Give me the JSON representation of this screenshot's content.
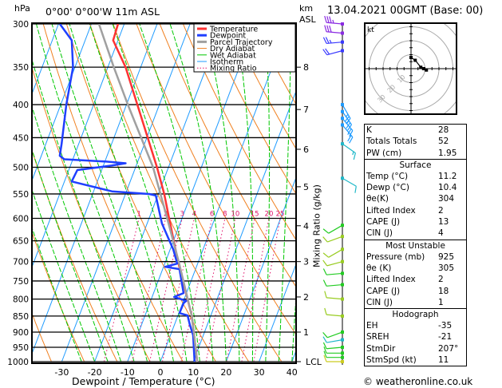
{
  "header": {
    "pressure_unit": "hPa",
    "location": "0°00' 0°00'W  11m  ASL",
    "height_unit_line1": "km",
    "height_unit_line2": "ASL",
    "datetime": "13.04.2021  00GMT  (Base: 00)"
  },
  "footer": {
    "credit": "© weatheronline.co.uk"
  },
  "chart_data": {
    "type": "skew-t log-p",
    "xlabel": "Dewpoint / Temperature (°C)",
    "ylabel_right": "Mixing Ratio (g/kg)",
    "x_ticks": [
      -30,
      -20,
      -10,
      0,
      10,
      20,
      30,
      40
    ],
    "xlim": [
      -39,
      41
    ],
    "pressure_levels": [
      300,
      350,
      400,
      450,
      500,
      550,
      600,
      650,
      700,
      750,
      800,
      850,
      900,
      950,
      1000
    ],
    "ylim_hpa": [
      1000,
      300
    ],
    "y_scale": "log",
    "height_ticks_km": [
      {
        "label": "8",
        "p": 350
      },
      {
        "label": "7",
        "p": 407
      },
      {
        "label": "6",
        "p": 469
      },
      {
        "label": "5",
        "p": 536
      },
      {
        "label": "4",
        "p": 616
      },
      {
        "label": "3",
        "p": 700
      },
      {
        "label": "2",
        "p": 794
      },
      {
        "label": "1",
        "p": 900
      },
      {
        "label": "LCL",
        "p": 1000
      }
    ],
    "mixing_ratio_labels": [
      "1",
      "2",
      "3",
      "4",
      "6",
      "8",
      "10",
      "15",
      "20",
      "25"
    ],
    "mixing_ratio_values": [
      1,
      2,
      3,
      4,
      6,
      8,
      10,
      15,
      20,
      25
    ],
    "legend": [
      {
        "label": "Temperature",
        "color": "#ff3333",
        "style": "thick"
      },
      {
        "label": "Dewpoint",
        "color": "#1f3fff",
        "style": "thick"
      },
      {
        "label": "Parcel Trajectory",
        "color": "#a0a0a0",
        "style": "thick"
      },
      {
        "label": "Dry Adiabat",
        "color": "#f08020",
        "style": "thin"
      },
      {
        "label": "Wet Adiabat",
        "color": "#00c800",
        "style": "thin"
      },
      {
        "label": "Isotherm",
        "color": "#1e9bff",
        "style": "thin"
      },
      {
        "label": "Mixing Ratio",
        "color": "#e0106a",
        "style": "dotted"
      }
    ],
    "legend_position": "top-right",
    "series": [
      {
        "name": "Temperature",
        "color": "#ff3333",
        "p": [
          1000,
          850,
          700,
          600,
          550,
          500,
          400,
          350,
          318,
          300
        ],
        "t": [
          11.2,
          4.3,
          -6.2,
          -13.9,
          -18.2,
          -23.5,
          -36.7,
          -44.6,
          -51.5,
          -51.9
        ]
      },
      {
        "name": "Dewpoint",
        "color": "#1f3fff",
        "p": [
          1000,
          910,
          877,
          848,
          841,
          812,
          805,
          794,
          783,
          719,
          713,
          705,
          671,
          611,
          553,
          550,
          545,
          526,
          505,
          497,
          493,
          490,
          486,
          480,
          460,
          400,
          350,
          318,
          300
        ],
        "t": [
          10.4,
          6.9,
          4.7,
          2.9,
          0.2,
          0.3,
          0.8,
          -3.3,
          -0.9,
          -4.9,
          -9.5,
          -6.2,
          -9.0,
          -15.5,
          -20.6,
          -22.8,
          -34.4,
          -47.8,
          -47.4,
          -37.5,
          -33.5,
          -39.6,
          -52.6,
          -54.4,
          -55.2,
          -58.3,
          -60.6,
          -64.1,
          -69.6
        ]
      },
      {
        "name": "Parcel Trajectory",
        "color": "#a0a0a0",
        "p": [
          1000,
          850,
          700,
          600,
          500,
          400,
          350,
          300
        ],
        "t": [
          11.2,
          4.3,
          -6.0,
          -14.5,
          -24.7,
          -39.6,
          -48.2,
          -57.7
        ]
      }
    ],
    "wind_barbs": [
      {
        "p": 300,
        "dir": 275,
        "kt": 35,
        "color": "#8a2be2"
      },
      {
        "p": 310,
        "dir": 275,
        "kt": 30,
        "color": "#8a2be2"
      },
      {
        "p": 320,
        "dir": 265,
        "kt": 25,
        "color": "#3a3aff"
      },
      {
        "p": 330,
        "dir": 255,
        "kt": 20,
        "color": "#3a3aff"
      },
      {
        "p": 400,
        "dir": 150,
        "kt": 25,
        "color": "#1e9bff"
      },
      {
        "p": 410,
        "dir": 145,
        "kt": 25,
        "color": "#1e9bff"
      },
      {
        "p": 420,
        "dir": 140,
        "kt": 20,
        "color": "#1e9bff"
      },
      {
        "p": 430,
        "dir": 140,
        "kt": 20,
        "color": "#1e9bff"
      },
      {
        "p": 460,
        "dir": 125,
        "kt": 15,
        "color": "#20b8c8"
      },
      {
        "p": 520,
        "dir": 120,
        "kt": 10,
        "color": "#20b8c8"
      },
      {
        "p": 615,
        "dir": 240,
        "kt": 10,
        "color": "#22cc22"
      },
      {
        "p": 640,
        "dir": 250,
        "kt": 10,
        "color": "#99cc22"
      },
      {
        "p": 670,
        "dir": 240,
        "kt": 10,
        "color": "#99cc22"
      },
      {
        "p": 700,
        "dir": 255,
        "kt": 10,
        "color": "#99cc22"
      },
      {
        "p": 730,
        "dir": 265,
        "kt": 10,
        "color": "#22cc22"
      },
      {
        "p": 760,
        "dir": 265,
        "kt": 10,
        "color": "#22cc22"
      },
      {
        "p": 800,
        "dir": 275,
        "kt": 10,
        "color": "#99cc22"
      },
      {
        "p": 850,
        "dir": 275,
        "kt": 10,
        "color": "#99cc22"
      },
      {
        "p": 900,
        "dir": 250,
        "kt": 10,
        "color": "#22cc22"
      },
      {
        "p": 925,
        "dir": 260,
        "kt": 10,
        "color": "#20b8c8"
      },
      {
        "p": 950,
        "dir": 265,
        "kt": 10,
        "color": "#22cc22"
      },
      {
        "p": 970,
        "dir": 270,
        "kt": 10,
        "color": "#22cc22"
      },
      {
        "p": 985,
        "dir": 270,
        "kt": 10,
        "color": "#22cc22"
      },
      {
        "p": 1000,
        "dir": 270,
        "kt": 10,
        "color": "#cccc22"
      }
    ]
  },
  "hodograph": {
    "unit": "kt",
    "ring_labels": [
      "10",
      "20",
      "30"
    ],
    "trace_uv_kt": [
      [
        0,
        8
      ],
      [
        3,
        6
      ],
      [
        7,
        1
      ],
      [
        9,
        0
      ],
      [
        11,
        -1
      ]
    ]
  },
  "indices": {
    "rows": [
      {
        "label": "K",
        "value": "28"
      },
      {
        "label": "Totals Totals",
        "value": "52"
      },
      {
        "label": "PW (cm)",
        "value": "1.95"
      }
    ]
  },
  "surface": {
    "title": "Surface",
    "rows": [
      {
        "label": "Temp (°C)",
        "value": "11.2"
      },
      {
        "label": "Dewp (°C)",
        "value": "10.4"
      },
      {
        "label": "θe(K)",
        "value": "304"
      },
      {
        "label": "Lifted Index",
        "value": "2"
      },
      {
        "label": "CAPE (J)",
        "value": "13"
      },
      {
        "label": "CIN (J)",
        "value": "4"
      }
    ]
  },
  "most_unstable": {
    "title": "Most Unstable",
    "rows": [
      {
        "label": "Pressure (mb)",
        "value": "925"
      },
      {
        "label": "θe (K)",
        "value": "305"
      },
      {
        "label": "Lifted Index",
        "value": "2"
      },
      {
        "label": "CAPE (J)",
        "value": "18"
      },
      {
        "label": "CIN (J)",
        "value": "1"
      }
    ]
  },
  "hodograph_stats": {
    "title": "Hodograph",
    "rows": [
      {
        "label": "EH",
        "value": "-35"
      },
      {
        "label": "SREH",
        "value": "-21"
      },
      {
        "label": "StmDir",
        "value": "207°"
      },
      {
        "label": "StmSpd (kt)",
        "value": "11"
      }
    ]
  }
}
